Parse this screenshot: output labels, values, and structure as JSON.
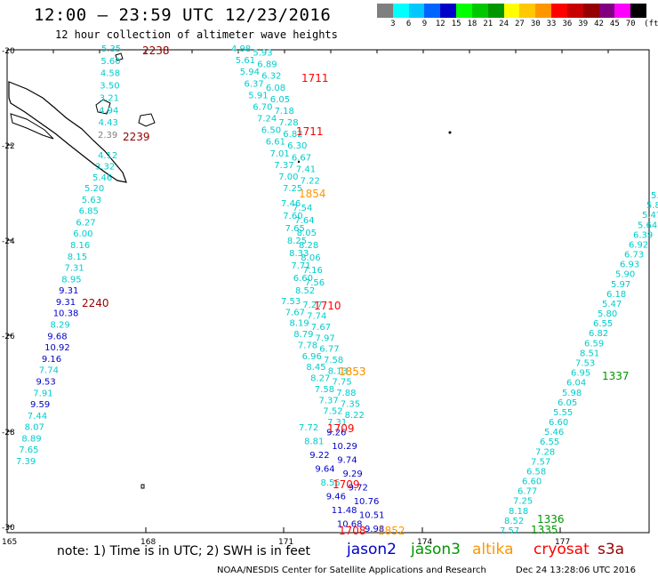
{
  "header": {
    "title": "12:00 – 23:59 UTC 12/23/2016",
    "subtitle": "12 hour collection of altimeter wave heights"
  },
  "colorbar": {
    "colors": [
      "#7f7f7f",
      "#00ffff",
      "#00c8ff",
      "#0064ff",
      "#0000c8",
      "#00ff00",
      "#00c800",
      "#009600",
      "#ffff00",
      "#ffc800",
      "#ff9600",
      "#ff0000",
      "#c80000",
      "#960000",
      "#800080",
      "#ff00ff",
      "#000000"
    ],
    "labels": [
      "3",
      "6",
      "9",
      "12",
      "15",
      "18",
      "21",
      "24",
      "27",
      "30",
      "33",
      "36",
      "39",
      "42",
      "45",
      "70",
      "(ft)"
    ]
  },
  "axes": {
    "lat_labels": [
      "-20",
      "-22",
      "-24",
      "-26",
      "-28",
      "-30"
    ],
    "lon_labels": [
      "165",
      "168",
      "171",
      "174",
      "177"
    ]
  },
  "colors": {
    "swh_3_6": "#00cccc",
    "swh_lt3": "#7f7f7f",
    "swh_9_12": "#0000c8",
    "swh_6_9_dark": "#0064ff",
    "jason2": "#0000c8",
    "jason3": "#009600",
    "altika": "#ff9600",
    "cryosat": "#ff0000",
    "s3a": "#960000",
    "time_1852": "#ff9600",
    "time_1337": "#009600"
  },
  "tracks": [
    {
      "time": "2238",
      "color": "#960000",
      "values": [
        "5.35",
        "5.60",
        "4.58",
        "3.50",
        "3.21",
        "4.94",
        "4.43",
        "2.39"
      ]
    },
    {
      "time": "2239",
      "color": "#960000",
      "values": [
        "4.12",
        "3.32",
        "5.46"
      ]
    },
    {
      "time": "2240",
      "color": "#960000",
      "values": [
        "5.20",
        "5.63",
        "6.85",
        "6.27",
        "6.00",
        "8.16",
        "8.15",
        "7.31",
        "8.95",
        "9.31",
        "9.31",
        "10.38",
        "8.29",
        "9.68",
        "10.92",
        "9.16",
        "7.74",
        "9.53",
        "7.91",
        "9.59",
        "7.44",
        "8.07",
        "8.89",
        "7.65",
        "7.39"
      ]
    },
    {
      "time": "1711",
      "color": "#ff0000",
      "values": [
        "4.98",
        "5.93",
        "5.61",
        "6.89",
        "5.94",
        "6.32",
        "6.37",
        "6.08",
        "5.91",
        "6.05",
        "6.70",
        "7.18",
        "7.24",
        "7.28",
        "6.50",
        "6.82",
        "6.61",
        "6.30",
        "7.01",
        "6.67",
        "7.37",
        "7.41",
        "7.00",
        "7.22",
        "7.25"
      ]
    },
    {
      "time": "1711",
      "color": "#ff0000",
      "values": []
    },
    {
      "time": "1854",
      "color": "#ff9600",
      "values": [
        "7.46",
        "7.54",
        "7.60",
        "7.64",
        "7.65",
        "8.05",
        "8.25",
        "8.28",
        "8.33",
        "8.06",
        "7.71",
        "7.16",
        "6.60",
        "7.56",
        "8.52"
      ]
    },
    {
      "time": "1710",
      "color": "#ff0000",
      "values": [
        "7.53",
        "7.27",
        "7.67",
        "7.74",
        "8.19",
        "7.67",
        "8.79",
        "7.97",
        "7.78",
        "6.77",
        "6.96",
        "7.58",
        "8.45",
        "8.13",
        "8.27",
        "7.75",
        "7.58",
        "7.88",
        "7.37",
        "7.35",
        "7.52",
        "8.22",
        "7.31"
      ]
    },
    {
      "time": "1853",
      "color": "#ff9600",
      "values": []
    },
    {
      "time": "1709",
      "color": "#ff0000",
      "values": [
        "7.72",
        "9.26",
        "8.81",
        "10.29",
        "9.22",
        "9.74",
        "9.64",
        "9.29",
        "8.55",
        "9.72",
        "9.46",
        "10.76",
        "11.48",
        "10.51",
        "10.68",
        "9.98"
      ]
    },
    {
      "time": "1708",
      "color": "#ff0000",
      "values": []
    },
    {
      "time": "1852",
      "color": "#ff9600",
      "values": []
    },
    {
      "time": "1337",
      "color": "#009600",
      "values": [
        "5.69",
        "5.82",
        "5.47",
        "5.64",
        "6.39",
        "6.92",
        "6.73",
        "6.93",
        "5.90",
        "5.97",
        "6.18",
        "5.47",
        "5.80",
        "6.55",
        "6.82",
        "6.59",
        "8.51",
        "7.53",
        "6.95",
        "6.04",
        "5.98",
        "6.05",
        "5.55",
        "6.60",
        "5.46",
        "6.55",
        "7.28",
        "7.57",
        "6.58",
        "6.60",
        "6.77",
        "7.25",
        "8.18",
        "8.52",
        "7.57"
      ]
    },
    {
      "time": "1336",
      "color": "#009600",
      "values": []
    },
    {
      "time": "1335",
      "color": "#009600",
      "values": []
    }
  ],
  "footer": {
    "note": "note: 1) Time is in UTC; 2) SWH is in feet",
    "satellites": [
      {
        "name": "jason2",
        "color": "#0000c8"
      },
      {
        "name": "jason3",
        "color": "#009600"
      },
      {
        "name": "altika",
        "color": "#ff9600"
      },
      {
        "name": "cryosat",
        "color": "#ff0000"
      },
      {
        "name": "s3a",
        "color": "#960000"
      }
    ],
    "credit": "NOAA/NESDIS Center for Satellite Applications and Research",
    "timestamp": "Dec 24 13:28:06 UTC 2016"
  }
}
